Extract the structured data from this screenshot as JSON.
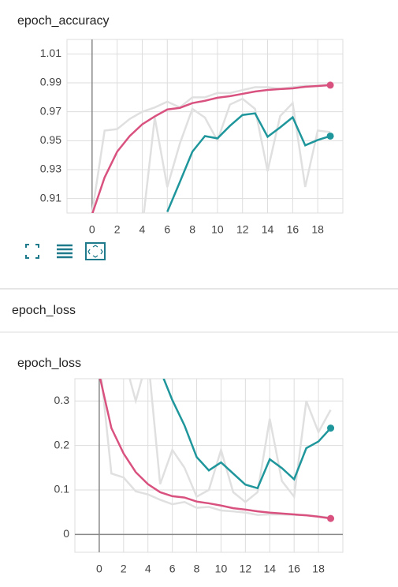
{
  "section_title": "epoch_loss",
  "chart_data": [
    {
      "type": "line",
      "title": "epoch_accuracy",
      "xlim": [
        -2,
        20
      ],
      "xticks": [
        0,
        2,
        4,
        6,
        8,
        10,
        12,
        14,
        16,
        18
      ],
      "ylim": [
        0.9,
        1.02
      ],
      "yticks": [
        0.91,
        0.93,
        0.95,
        0.97,
        0.99,
        1.01
      ],
      "grid": true,
      "series": [
        {
          "color": "#e0e0e0",
          "x": [
            0,
            1,
            2,
            3,
            4,
            5,
            6,
            7,
            8,
            9,
            10,
            11,
            12,
            13,
            14,
            15,
            16,
            17,
            18,
            19
          ],
          "values": [
            0.9,
            0.957,
            0.958,
            0.965,
            0.97,
            0.973,
            0.977,
            0.973,
            0.98,
            0.98,
            0.983,
            0.983,
            0.985,
            0.987,
            0.987,
            0.986,
            0.987,
            0.988,
            0.988,
            0.989
          ]
        },
        {
          "color": "#e0e0e0",
          "x": [
            4,
            5,
            6,
            7,
            8,
            9,
            10,
            11,
            12,
            13,
            14,
            15,
            16,
            17,
            18,
            19
          ],
          "values": [
            0.89,
            0.966,
            0.918,
            0.948,
            0.972,
            0.966,
            0.95,
            0.975,
            0.979,
            0.972,
            0.929,
            0.967,
            0.976,
            0.918,
            0.957,
            0.956
          ]
        },
        {
          "color": "#d9527f",
          "x": [
            0,
            1,
            2,
            3,
            4,
            5,
            6,
            7,
            8,
            9,
            10,
            11,
            12,
            13,
            14,
            15,
            16,
            17,
            18,
            19
          ],
          "values": [
            0.899,
            0.9246,
            0.9424,
            0.9532,
            0.9613,
            0.9668,
            0.9716,
            0.9727,
            0.976,
            0.9776,
            0.9797,
            0.9808,
            0.9824,
            0.984,
            0.9851,
            0.9857,
            0.9862,
            0.9873,
            0.9878,
            0.9884
          ]
        },
        {
          "color": "#1f969b",
          "x": [
            6,
            7,
            8,
            9,
            10,
            11,
            12,
            13,
            14,
            15,
            16,
            17,
            18,
            19
          ],
          "values": [
            0.9008,
            0.9214,
            0.9424,
            0.9532,
            0.9516,
            0.9603,
            0.9678,
            0.9689,
            0.9527,
            0.9592,
            0.9662,
            0.9468,
            0.9505,
            0.9532
          ]
        }
      ]
    },
    {
      "type": "line",
      "title": "epoch_loss",
      "xlim": [
        -2,
        20
      ],
      "xticks": [
        0,
        2,
        4,
        6,
        8,
        10,
        12,
        14,
        16,
        18
      ],
      "ylim": [
        -0.04,
        0.35
      ],
      "yticks": [
        0,
        0.1,
        0.2,
        0.3
      ],
      "grid": true,
      "series": [
        {
          "color": "#e0e0e0",
          "x": [
            0,
            1,
            2,
            3,
            4,
            5,
            6,
            7,
            8,
            9,
            10,
            11,
            12,
            13,
            14,
            15,
            16,
            17,
            18,
            19
          ],
          "values": [
            0.4,
            0.137,
            0.128,
            0.097,
            0.09,
            0.078,
            0.068,
            0.073,
            0.06,
            0.062,
            0.054,
            0.052,
            0.049,
            0.044,
            0.045,
            0.045,
            0.044,
            0.043,
            0.041,
            0.038
          ]
        },
        {
          "color": "#e0e0e0",
          "x": [
            2,
            3,
            4,
            5,
            6,
            7,
            8,
            9,
            10,
            11,
            12,
            13,
            14,
            15,
            16,
            17,
            18,
            19
          ],
          "values": [
            0.4,
            0.3,
            0.4,
            0.113,
            0.19,
            0.15,
            0.085,
            0.1,
            0.19,
            0.095,
            0.073,
            0.095,
            0.26,
            0.12,
            0.085,
            0.3,
            0.23,
            0.28
          ]
        },
        {
          "color": "#d9527f",
          "x": [
            0,
            1,
            2,
            3,
            4,
            5,
            6,
            7,
            8,
            9,
            10,
            11,
            12,
            13,
            14,
            15,
            16,
            17,
            18,
            19
          ],
          "values": [
            0.36,
            0.239,
            0.182,
            0.14,
            0.113,
            0.095,
            0.086,
            0.083,
            0.074,
            0.07,
            0.065,
            0.059,
            0.056,
            0.052,
            0.049,
            0.047,
            0.045,
            0.043,
            0.04,
            0.036
          ]
        },
        {
          "color": "#1f969b",
          "x": [
            5,
            6,
            7,
            8,
            9,
            10,
            11,
            12,
            13,
            14,
            15,
            16,
            17,
            18,
            19
          ],
          "values": [
            0.37,
            0.302,
            0.245,
            0.174,
            0.144,
            0.162,
            0.137,
            0.112,
            0.104,
            0.169,
            0.149,
            0.124,
            0.194,
            0.209,
            0.239
          ]
        }
      ]
    }
  ]
}
